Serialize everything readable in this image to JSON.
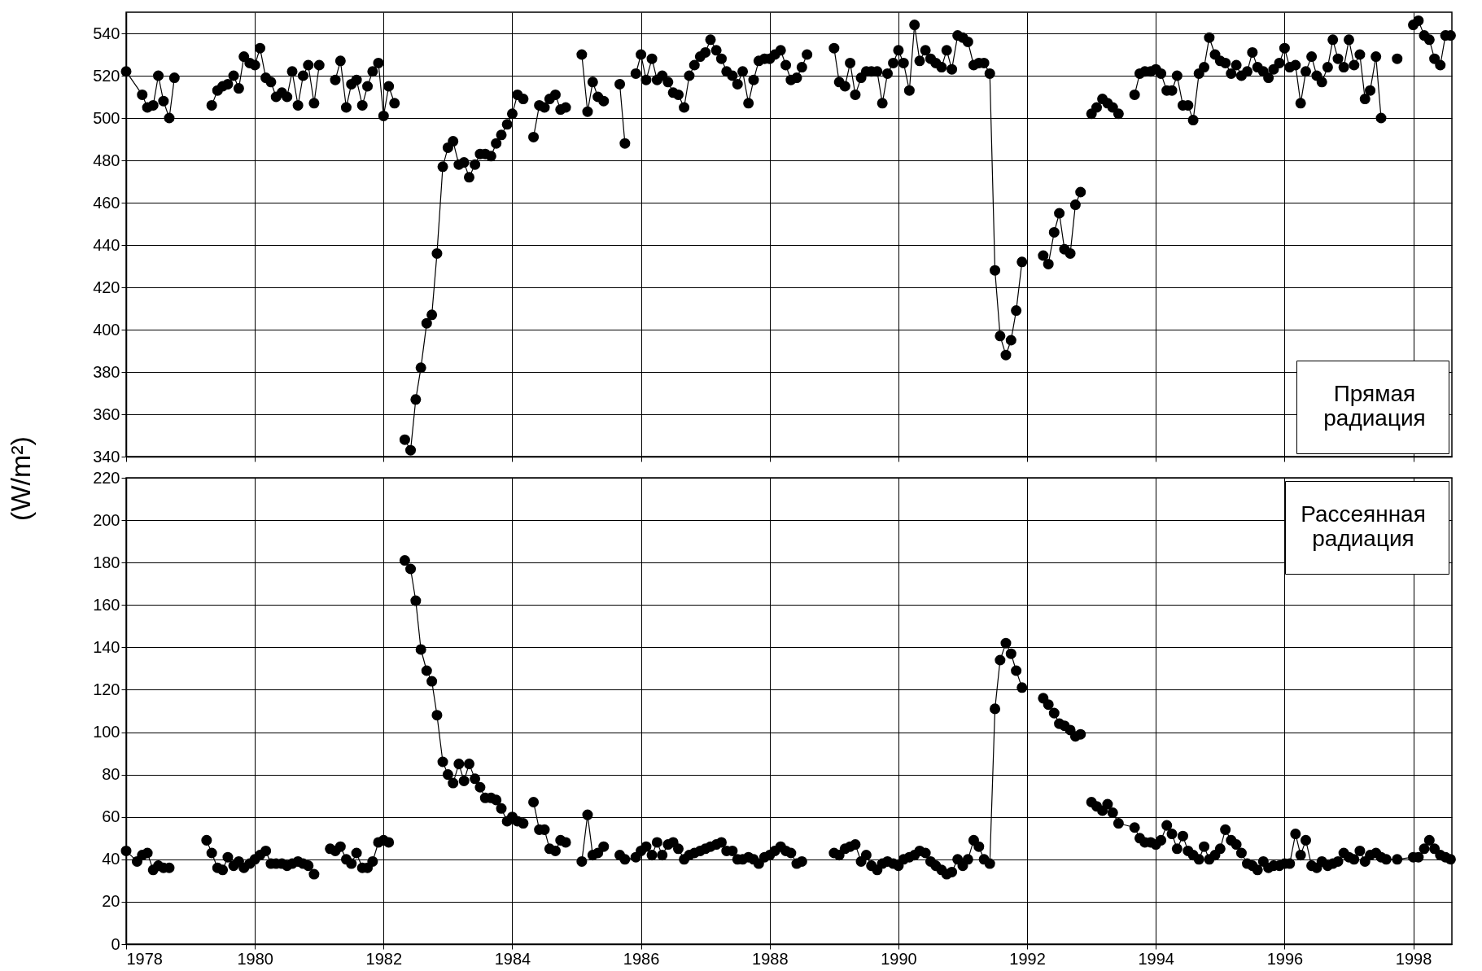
{
  "chart_data": [
    {
      "type": "line",
      "ylabel": "(W/m²)",
      "xlim": [
        1978,
        1998.6
      ],
      "xticks": [
        1978,
        1980,
        1982,
        1984,
        1986,
        1988,
        1990,
        1992,
        1994,
        1996,
        1998
      ],
      "ylim": [
        340,
        550
      ],
      "yticks": [
        340,
        360,
        380,
        400,
        420,
        440,
        460,
        480,
        500,
        520,
        540
      ],
      "grid": true,
      "marker": "circle",
      "line_style": "solid",
      "legend": "bottom right",
      "tick_labels": "y",
      "series": [
        {
          "name": "Прямая радиация",
          "color": "#000000",
          "x": [
            1978.0,
            1978.25,
            1978.33,
            1978.42,
            1978.5,
            1978.58,
            1978.67,
            1978.75,
            1979.0,
            1979.33,
            1979.42,
            1979.5,
            1979.58,
            1979.67,
            1979.75,
            1979.83,
            1979.92,
            1980.0,
            1980.08,
            1980.17,
            1980.25,
            1980.33,
            1980.42,
            1980.5,
            1980.58,
            1980.67,
            1980.75,
            1980.83,
            1980.92,
            1981.0,
            1981.17,
            1981.25,
            1981.33,
            1981.42,
            1981.5,
            1981.58,
            1981.67,
            1981.75,
            1981.83,
            1981.92,
            1982.0,
            1982.08,
            1982.17,
            1982.25,
            1982.33,
            1982.42,
            1982.5,
            1982.58,
            1982.67,
            1982.75,
            1982.83,
            1982.92,
            1983.0,
            1983.08,
            1983.17,
            1983.25,
            1983.33,
            1983.42,
            1983.5,
            1983.58,
            1983.67,
            1983.75,
            1983.83,
            1983.92,
            1984.0,
            1984.08,
            1984.17,
            1984.25,
            1984.33,
            1984.42,
            1984.5,
            1984.58,
            1984.67,
            1984.75,
            1984.83,
            1985.0,
            1985.08,
            1985.17,
            1985.25,
            1985.33,
            1985.42,
            1985.5,
            1985.67,
            1985.75,
            1985.83,
            1985.92,
            1986.0,
            1986.08,
            1986.17,
            1986.25,
            1986.33,
            1986.42,
            1986.5,
            1986.58,
            1986.67,
            1986.75,
            1986.83,
            1986.92,
            1987.0,
            1987.08,
            1987.17,
            1987.25,
            1987.33,
            1987.42,
            1987.5,
            1987.58,
            1987.67,
            1987.75,
            1987.83,
            1987.92,
            1988.0,
            1988.08,
            1988.17,
            1988.25,
            1988.33,
            1988.42,
            1988.5,
            1988.58,
            1988.75,
            1989.0,
            1989.08,
            1989.17,
            1989.25,
            1989.33,
            1989.42,
            1989.5,
            1989.58,
            1989.67,
            1989.75,
            1989.83,
            1989.92,
            1990.0,
            1990.08,
            1990.17,
            1990.25,
            1990.33,
            1990.42,
            1990.5,
            1990.58,
            1990.67,
            1990.75,
            1990.83,
            1990.92,
            1991.0,
            1991.08,
            1991.17,
            1991.25,
            1991.33,
            1991.42,
            1991.5,
            1991.58,
            1991.67,
            1991.75,
            1991.83,
            1991.92,
            1992.08,
            1992.25,
            1992.33,
            1992.42,
            1992.5,
            1992.58,
            1992.67,
            1992.75,
            1992.83,
            1992.92,
            1993.0,
            1993.08,
            1993.17,
            1993.25,
            1993.33,
            1993.42,
            1993.5,
            1993.67,
            1993.75,
            1993.83,
            1993.92,
            1994.0,
            1994.08,
            1994.17,
            1994.25,
            1994.33,
            1994.42,
            1994.5,
            1994.58,
            1994.67,
            1994.75,
            1994.83,
            1994.92,
            1995.0,
            1995.08,
            1995.17,
            1995.25,
            1995.33,
            1995.42,
            1995.5,
            1995.58,
            1995.67,
            1995.75,
            1995.83,
            1995.92,
            1996.0,
            1996.08,
            1996.17,
            1996.25,
            1996.33,
            1996.42,
            1996.5,
            1996.58,
            1996.67,
            1996.75,
            1996.83,
            1996.92,
            1997.0,
            1997.08,
            1997.17,
            1997.25,
            1997.33,
            1997.42,
            1997.5,
            1997.58,
            1997.75,
            1997.83,
            1998.0,
            1998.08,
            1998.17,
            1998.25,
            1998.33,
            1998.42,
            1998.5,
            1998.58
          ],
          "values": [
            522,
            511,
            505,
            506,
            520,
            508,
            500,
            519,
            null,
            506,
            513,
            515,
            516,
            520,
            514,
            529,
            526,
            525,
            533,
            519,
            517,
            510,
            512,
            510,
            522,
            506,
            520,
            525,
            507,
            525,
            null,
            518,
            527,
            505,
            516,
            518,
            506,
            515,
            522,
            526,
            501,
            515,
            507,
            null,
            348,
            343,
            367,
            382,
            403,
            407,
            436,
            477,
            486,
            489,
            478,
            479,
            472,
            478,
            483,
            483,
            482,
            488,
            492,
            497,
            502,
            511,
            509,
            null,
            491,
            506,
            505,
            509,
            511,
            504,
            505,
            null,
            530,
            503,
            517,
            510,
            508,
            null,
            516,
            488,
            null,
            521,
            530,
            518,
            528,
            518,
            520,
            517,
            512,
            511,
            505,
            520,
            525,
            529,
            531,
            537,
            532,
            528,
            522,
            520,
            516,
            522,
            507,
            518,
            527,
            528,
            528,
            530,
            532,
            525,
            518,
            519,
            524,
            530,
            null,
            533,
            517,
            515,
            526,
            511,
            519,
            522,
            522,
            522,
            507,
            521,
            526,
            532,
            526,
            513,
            544,
            527,
            532,
            528,
            526,
            524,
            532,
            523,
            539,
            538,
            536,
            525,
            526,
            526,
            521,
            428,
            397,
            388,
            395,
            409,
            432,
            null,
            435,
            431,
            446,
            455,
            438,
            436,
            459,
            465,
            null,
            502,
            505,
            509,
            507,
            505,
            502,
            null,
            511,
            521,
            522,
            522,
            523,
            521,
            513,
            513,
            520,
            506,
            506,
            499,
            521,
            524,
            538,
            530,
            527,
            526,
            521,
            525,
            520,
            522,
            531,
            524,
            522,
            519,
            523,
            526,
            533,
            524,
            525,
            507,
            522,
            529,
            520,
            517,
            524,
            537,
            528,
            524,
            537,
            525,
            530,
            509,
            513,
            529,
            500,
            null,
            528,
            null,
            544,
            546,
            539,
            537,
            528,
            525,
            539,
            539
          ]
        }
      ]
    },
    {
      "type": "line",
      "xlim": [
        1978,
        1998.6
      ],
      "xticks": [
        1978,
        1980,
        1982,
        1984,
        1986,
        1988,
        1990,
        1992,
        1994,
        1996,
        1998
      ],
      "ylim": [
        0,
        220
      ],
      "yticks": [
        0,
        20,
        40,
        60,
        80,
        100,
        120,
        140,
        160,
        180,
        200,
        220
      ],
      "grid": true,
      "marker": "circle",
      "line_style": "solid",
      "legend": "top right",
      "series": [
        {
          "name": "Рассеянная радиация",
          "color": "#000000",
          "x": [
            1978.0,
            1978.17,
            1978.25,
            1978.33,
            1978.42,
            1978.5,
            1978.58,
            1978.67,
            1979.0,
            1979.25,
            1979.33,
            1979.42,
            1979.5,
            1979.58,
            1979.67,
            1979.75,
            1979.83,
            1979.92,
            1980.0,
            1980.08,
            1980.17,
            1980.25,
            1980.33,
            1980.42,
            1980.5,
            1980.58,
            1980.67,
            1980.75,
            1980.83,
            1980.92,
            1981.08,
            1981.17,
            1981.25,
            1981.33,
            1981.42,
            1981.5,
            1981.58,
            1981.67,
            1981.75,
            1981.83,
            1981.92,
            1982.0,
            1982.08,
            1982.2,
            1982.33,
            1982.42,
            1982.5,
            1982.58,
            1982.67,
            1982.75,
            1982.83,
            1982.92,
            1983.0,
            1983.08,
            1983.17,
            1983.25,
            1983.33,
            1983.42,
            1983.5,
            1983.58,
            1983.67,
            1983.75,
            1983.83,
            1983.92,
            1984.0,
            1984.08,
            1984.17,
            1984.25,
            1984.33,
            1984.42,
            1984.5,
            1984.58,
            1984.67,
            1984.75,
            1984.83,
            1985.0,
            1985.08,
            1985.17,
            1985.25,
            1985.33,
            1985.42,
            1985.55,
            1985.67,
            1985.75,
            1985.92,
            1986.0,
            1986.08,
            1986.17,
            1986.25,
            1986.33,
            1986.42,
            1986.5,
            1986.58,
            1986.67,
            1986.75,
            1986.83,
            1986.92,
            1987.0,
            1987.08,
            1987.17,
            1987.25,
            1987.33,
            1987.42,
            1987.5,
            1987.58,
            1987.67,
            1987.75,
            1987.83,
            1987.92,
            1988.0,
            1988.08,
            1988.17,
            1988.25,
            1988.33,
            1988.42,
            1988.5,
            1988.75,
            1989.0,
            1989.08,
            1989.17,
            1989.25,
            1989.33,
            1989.42,
            1989.5,
            1989.58,
            1989.67,
            1989.75,
            1989.83,
            1989.92,
            1990.0,
            1990.08,
            1990.17,
            1990.25,
            1990.33,
            1990.42,
            1990.5,
            1990.58,
            1990.67,
            1990.75,
            1990.83,
            1990.92,
            1991.0,
            1991.08,
            1991.17,
            1991.25,
            1991.33,
            1991.42,
            1991.5,
            1991.58,
            1991.67,
            1991.75,
            1991.83,
            1991.92,
            1992.08,
            1992.25,
            1992.33,
            1992.42,
            1992.5,
            1992.58,
            1992.67,
            1992.75,
            1992.83,
            1992.92,
            1993.0,
            1993.08,
            1993.17,
            1993.25,
            1993.33,
            1993.42,
            1993.67,
            1993.75,
            1993.83,
            1993.92,
            1994.0,
            1994.08,
            1994.17,
            1994.25,
            1994.33,
            1994.42,
            1994.5,
            1994.58,
            1994.67,
            1994.75,
            1994.83,
            1994.92,
            1995.0,
            1995.08,
            1995.17,
            1995.25,
            1995.33,
            1995.42,
            1995.5,
            1995.58,
            1995.67,
            1995.75,
            1995.83,
            1995.92,
            1996.0,
            1996.08,
            1996.17,
            1996.25,
            1996.33,
            1996.42,
            1996.5,
            1996.58,
            1996.67,
            1996.75,
            1996.83,
            1996.92,
            1997.0,
            1997.08,
            1997.17,
            1997.25,
            1997.33,
            1997.42,
            1997.5,
            1997.58,
            1997.75,
            1998.0,
            1998.08,
            1998.17,
            1998.25,
            1998.33,
            1998.42,
            1998.5,
            1998.58
          ],
          "values": [
            44,
            39,
            42,
            43,
            35,
            37,
            36,
            36,
            null,
            49,
            43,
            36,
            35,
            41,
            37,
            39,
            36,
            38,
            40,
            42,
            44,
            38,
            38,
            38,
            37,
            38,
            39,
            38,
            37,
            33,
            null,
            45,
            44,
            46,
            40,
            38,
            43,
            36,
            36,
            39,
            48,
            49,
            48,
            null,
            181,
            177,
            162,
            139,
            129,
            124,
            108,
            86,
            80,
            76,
            85,
            77,
            85,
            78,
            74,
            69,
            69,
            68,
            64,
            58,
            60,
            58,
            57,
            null,
            67,
            54,
            54,
            45,
            44,
            49,
            48,
            null,
            39,
            61,
            42,
            43,
            46,
            null,
            42,
            40,
            41,
            44,
            46,
            42,
            48,
            42,
            47,
            48,
            45,
            40,
            42,
            43,
            44,
            45,
            46,
            47,
            48,
            44,
            44,
            40,
            40,
            41,
            40,
            38,
            41,
            42,
            44,
            46,
            44,
            43,
            38,
            39,
            null,
            43,
            42,
            45,
            46,
            47,
            39,
            42,
            37,
            35,
            38,
            39,
            38,
            37,
            40,
            41,
            42,
            44,
            43,
            39,
            37,
            35,
            33,
            34,
            40,
            37,
            40,
            49,
            46,
            40,
            38,
            111,
            134,
            142,
            137,
            129,
            121,
            null,
            116,
            113,
            109,
            104,
            103,
            101,
            98,
            99,
            null,
            67,
            65,
            63,
            66,
            62,
            57,
            55,
            50,
            48,
            48,
            47,
            49,
            56,
            52,
            45,
            51,
            44,
            42,
            40,
            46,
            40,
            42,
            45,
            54,
            49,
            47,
            43,
            38,
            37,
            35,
            39,
            36,
            37,
            37,
            38,
            38,
            52,
            42,
            49,
            37,
            36,
            39,
            37,
            38,
            39,
            43,
            41,
            40,
            44,
            39,
            42,
            43,
            41,
            40,
            40,
            41,
            41,
            45,
            49,
            45,
            42,
            41,
            40
          ]
        }
      ]
    }
  ]
}
